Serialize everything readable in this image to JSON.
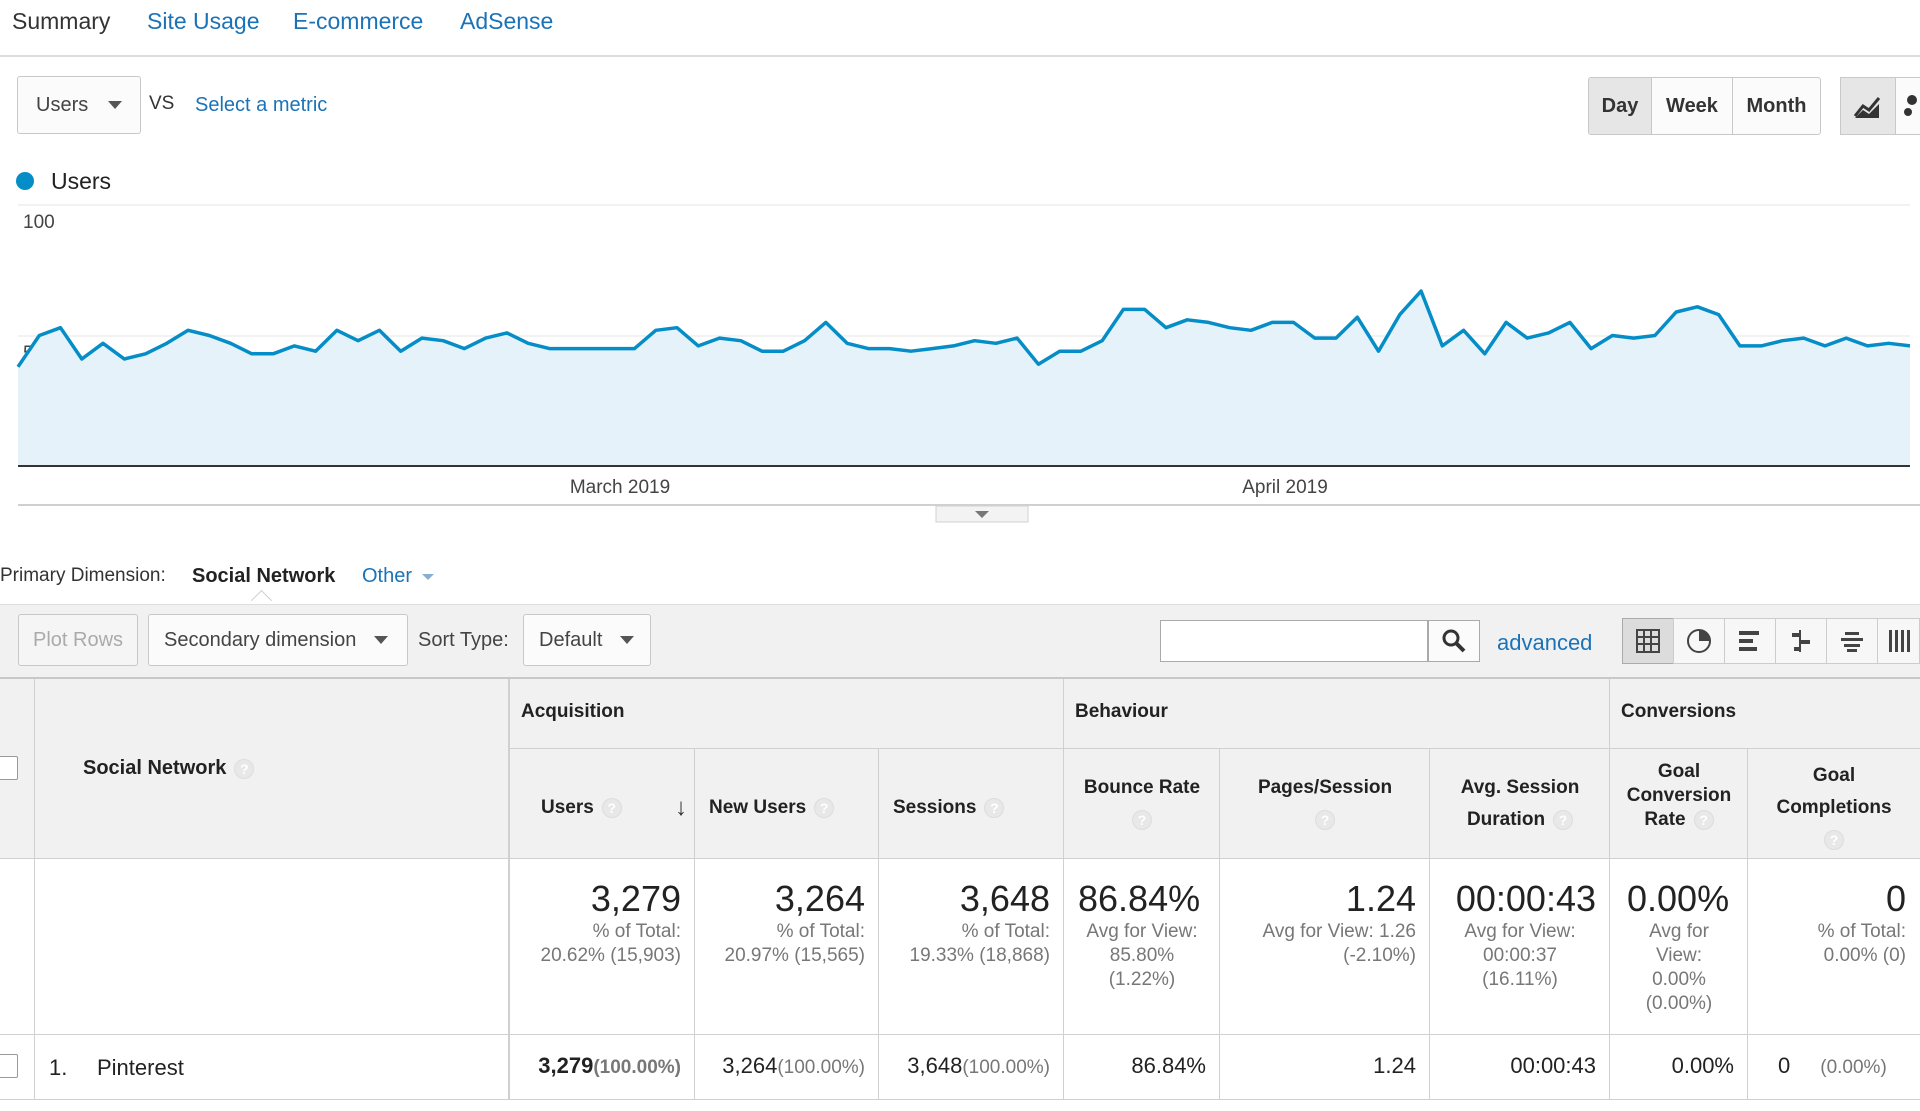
{
  "tabs": [
    "Summary",
    "Site Usage",
    "E-commerce",
    "AdSense"
  ],
  "metric_select": {
    "value": "Users",
    "vs_label": "VS",
    "second_metric_link": "Select a metric"
  },
  "period_buttons": [
    "Day",
    "Week",
    "Month"
  ],
  "active_period": "Day",
  "chart_data": {
    "type": "area",
    "series": [
      {
        "name": "Users",
        "color": "#058dc7",
        "values": [
          38,
          50,
          53,
          41,
          47,
          41,
          43,
          47,
          52,
          50,
          47,
          43,
          43,
          46,
          44,
          52,
          48,
          52,
          44,
          49,
          48,
          45,
          49,
          51,
          47,
          45,
          45,
          45,
          45,
          45,
          52,
          53,
          46,
          49,
          48,
          44,
          44,
          48,
          55,
          47,
          45,
          45,
          44,
          45,
          46,
          48,
          47,
          49,
          39,
          44,
          44,
          48,
          60,
          60,
          53,
          56,
          55,
          53,
          52,
          55,
          55,
          49,
          49,
          57,
          44,
          58,
          67,
          46,
          52,
          43,
          55,
          49,
          51,
          55,
          45,
          50,
          49,
          50,
          59,
          61,
          58,
          46,
          46,
          48,
          49,
          46,
          49,
          46,
          47,
          46
        ]
      }
    ],
    "x_labels": [
      "March 2019",
      "April 2019"
    ],
    "y_ticks": [
      100,
      50
    ],
    "ylim": [
      0,
      100
    ],
    "legend_position": "top-left",
    "grid": true
  },
  "dimension": {
    "label": "Primary Dimension:",
    "value": "Social Network",
    "other": "Other"
  },
  "toolbar": {
    "plot_rows": "Plot Rows",
    "secondary": "Secondary dimension",
    "sort_label": "Sort Type:",
    "sort_value": "Default",
    "search_placeholder": "",
    "advanced": "advanced"
  },
  "table": {
    "dim_header": "Social Network",
    "groups": [
      "Acquisition",
      "Behaviour",
      "Conversions"
    ],
    "cols": [
      {
        "label": "Users",
        "total": "3,279",
        "sub": "% of Total:|20.62% (15,903)",
        "row": "3,279",
        "row_pct": "(100.00%)"
      },
      {
        "label": "New Users",
        "total": "3,264",
        "sub": "% of Total:|20.97% (15,565)",
        "row": "3,264",
        "row_pct": "(100.00%)"
      },
      {
        "label": "Sessions",
        "total": "3,648",
        "sub": "% of Total:|19.33% (18,868)",
        "row": "3,648",
        "row_pct": "(100.00%)"
      },
      {
        "label": "Bounce Rate",
        "total": "86.84%",
        "sub": "Avg for View:|85.80%|(1.22%)",
        "row": "86.84%",
        "row_pct": ""
      },
      {
        "label": "Pages/Session",
        "total": "1.24",
        "sub": "Avg for View: 1.26|(-2.10%)",
        "row": "1.24",
        "row_pct": ""
      },
      {
        "label": "Avg. Session|Duration",
        "total": "00:00:43",
        "sub": "Avg for View:|00:00:37|(16.11%)",
        "row": "00:00:43",
        "row_pct": ""
      },
      {
        "label": "Goal|Conversion|Rate",
        "total": "0.00%",
        "sub": "Avg for|View:|0.00%|(0.00%)",
        "row": "0.00%",
        "row_pct": ""
      },
      {
        "label": "Goal|Completions",
        "total": "0",
        "sub": "% of Total:|0.00% (0)",
        "row": "0",
        "row_pct": "(0.00%)"
      }
    ],
    "row": {
      "index": "1.",
      "name": "Pinterest"
    }
  },
  "qmark": "?"
}
